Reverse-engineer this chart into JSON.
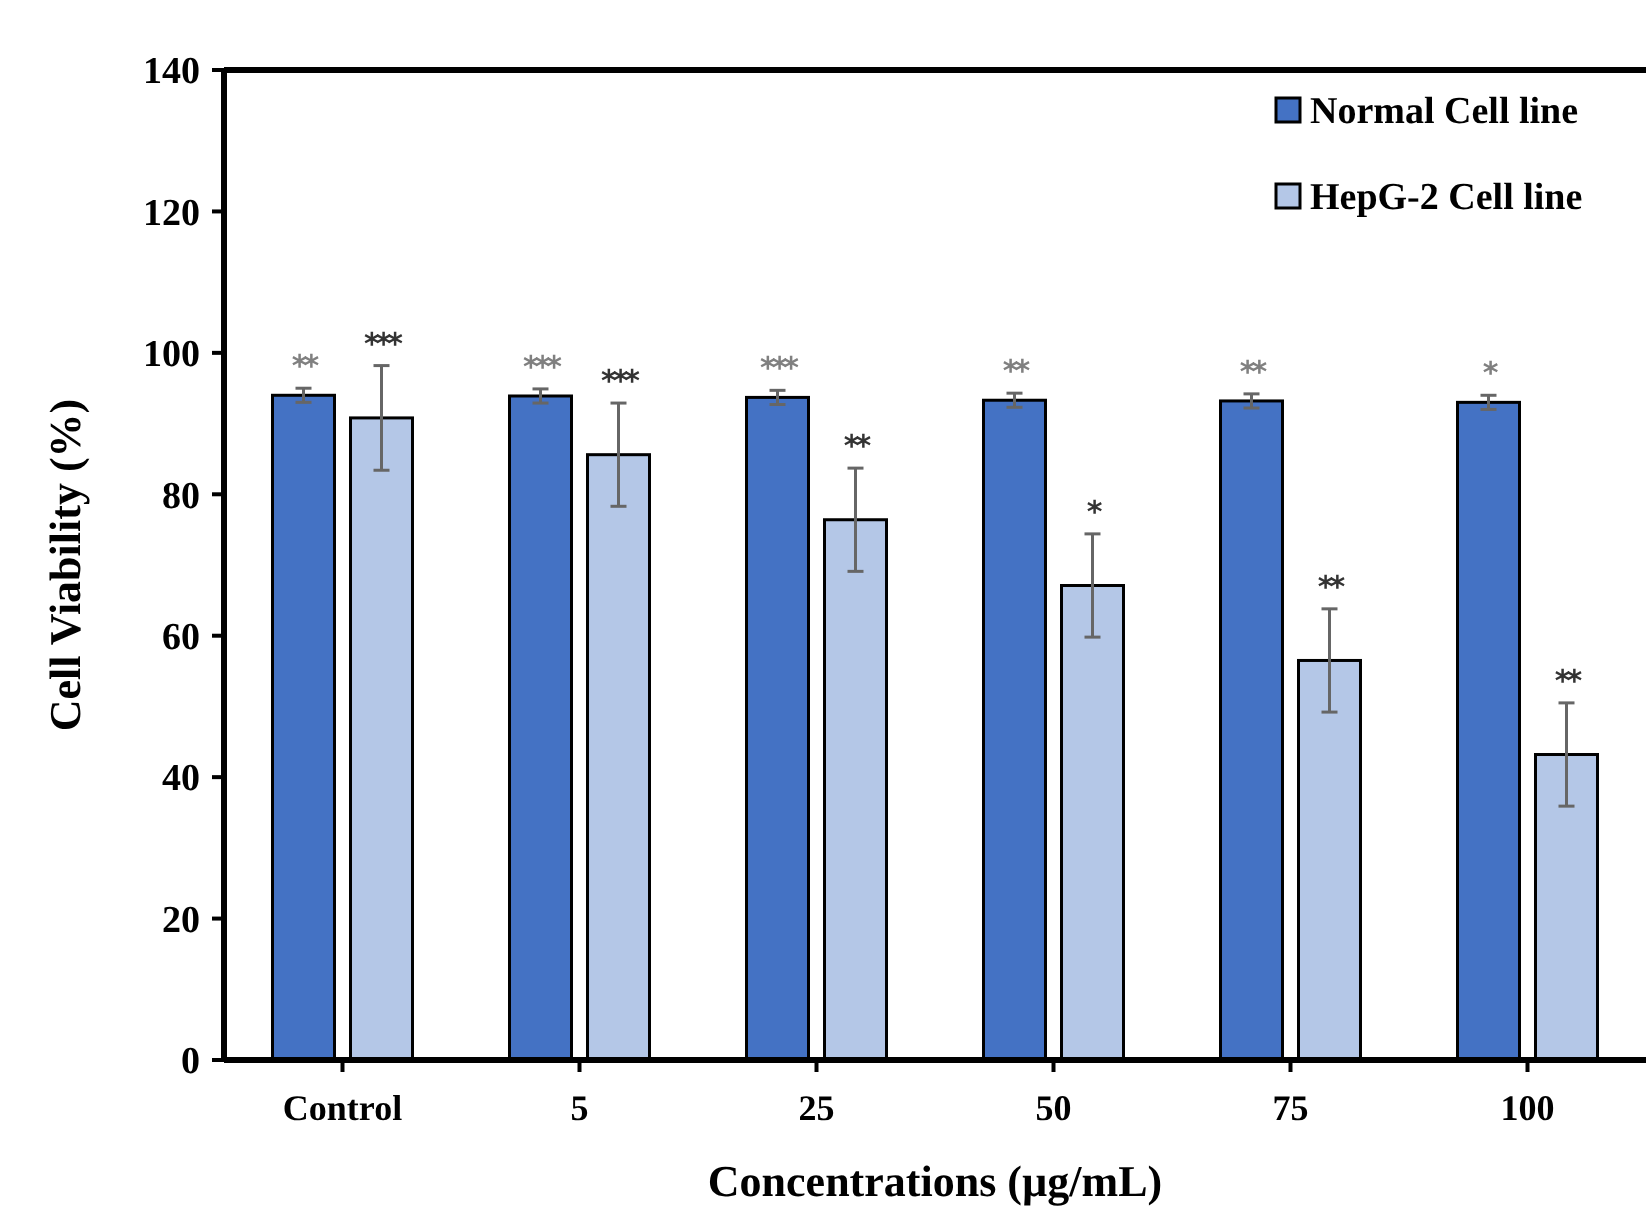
{
  "chart_data": {
    "type": "bar",
    "xlabel": "Concentrations (µg/mL)",
    "ylabel": "Cell Viability (%)",
    "categories": [
      "Control",
      "5",
      "25",
      "50",
      "75",
      "100"
    ],
    "ylim": [
      0,
      140
    ],
    "yticks": [
      0,
      20,
      40,
      60,
      80,
      100,
      120,
      140
    ],
    "legend": "top right",
    "grid": false,
    "series": [
      {
        "name": "Normal Cell line",
        "color": "#4472c4",
        "values": [
          94,
          93.9,
          93.7,
          93.3,
          93.2,
          93
        ],
        "errors": [
          1,
          1,
          1,
          1,
          1,
          1
        ],
        "value_labels": [
          "**",
          "***",
          "***",
          "**",
          "**",
          "*"
        ]
      },
      {
        "name": "HepG-2 Cell line",
        "color": "#b4c7e7",
        "values": [
          90.8,
          85.6,
          76.4,
          67.1,
          56.5,
          43.2
        ],
        "errors": [
          7.4,
          7.3,
          7.3,
          7.3,
          7.3,
          7.3
        ],
        "value_labels": [
          "***",
          "***",
          "**",
          "*",
          "**",
          "**"
        ]
      }
    ]
  }
}
